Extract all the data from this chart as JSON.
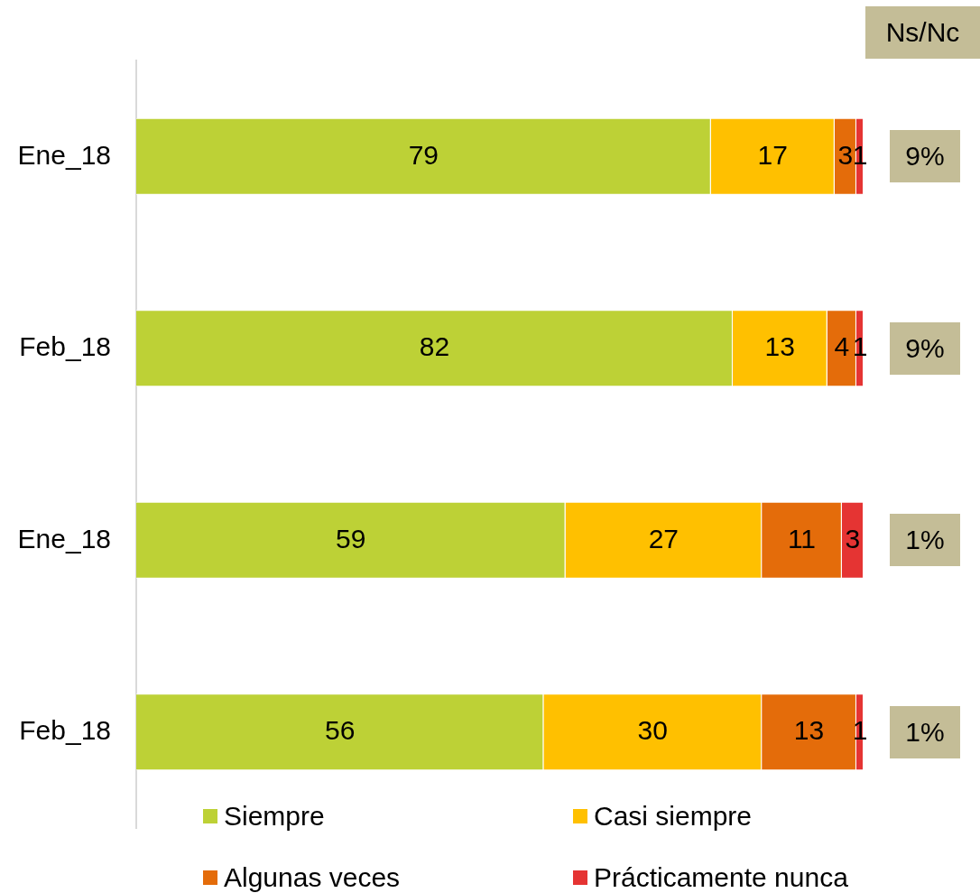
{
  "chart_data": {
    "type": "bar",
    "orientation": "horizontal",
    "stacked": true,
    "categories": [
      "Ene_18",
      "Feb_18",
      "Ene_18",
      "Feb_18"
    ],
    "series": [
      {
        "name": "Siempre",
        "color": "#bdd136",
        "values": [
          79,
          82,
          59,
          56
        ]
      },
      {
        "name": "Casi siempre",
        "color": "#ffc000",
        "values": [
          17,
          13,
          27,
          30
        ]
      },
      {
        "name": "Algunas veces",
        "color": "#e46c0a",
        "values": [
          3,
          4,
          11,
          13
        ]
      },
      {
        "name": "Prácticamente nunca",
        "color": "#e53433",
        "values": [
          1,
          1,
          3,
          1
        ]
      }
    ],
    "xlim": [
      0,
      100
    ],
    "data_labels": true,
    "tick_labels": "y",
    "legend": "bottom",
    "annotations": [
      "Ns/Nc",
      "9%",
      "9%",
      "1%",
      "1%"
    ]
  }
}
